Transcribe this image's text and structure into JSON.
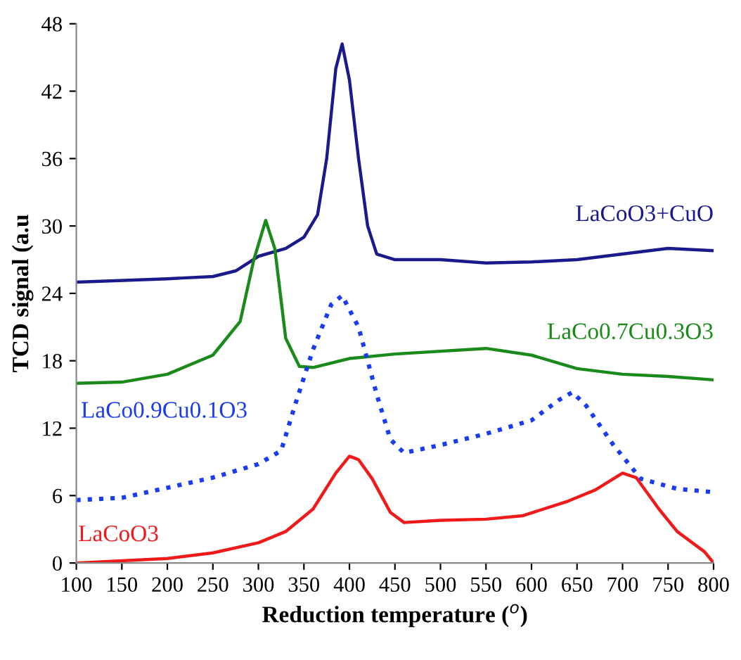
{
  "chart_data": {
    "type": "line",
    "xlabel": "Reduction temperature ($^{o}$)",
    "ylabel": "TCD signal (a.u",
    "xlim": [
      100,
      800
    ],
    "xticks": [
      100,
      150,
      200,
      250,
      300,
      350,
      400,
      450,
      500,
      550,
      600,
      650,
      700,
      750,
      800
    ],
    "ylim": [
      0,
      48
    ],
    "yticks": [
      0,
      6,
      12,
      18,
      24,
      30,
      36,
      42,
      48
    ],
    "grid": false,
    "legend": false,
    "marker": "none",
    "series": [
      {
        "name": "LaCoO3+CuO",
        "color": "#1a1a8c",
        "line_style": "solid",
        "x": [
          100,
          200,
          250,
          275,
          300,
          330,
          350,
          365,
          375,
          385,
          392,
          400,
          410,
          420,
          430,
          450,
          500,
          550,
          600,
          650,
          700,
          750,
          800
        ],
        "values": [
          25,
          25.3,
          25.5,
          26,
          27.3,
          28,
          29,
          31,
          36,
          44,
          46.2,
          43,
          36,
          30,
          27.5,
          27,
          27,
          26.7,
          26.8,
          27,
          27.5,
          28,
          27.8
        ]
      },
      {
        "name": "LaCo0.7Cu0.3O3",
        "color": "#1a8a1a",
        "line_style": "solid",
        "x": [
          100,
          150,
          200,
          250,
          280,
          295,
          308,
          318,
          330,
          345,
          360,
          400,
          450,
          550,
          600,
          650,
          700,
          750,
          800
        ],
        "values": [
          16,
          16.1,
          16.8,
          18.5,
          21.5,
          27,
          30.5,
          28,
          20,
          17.5,
          17.4,
          18.2,
          18.6,
          19.1,
          18.5,
          17.3,
          16.8,
          16.6,
          16.3
        ]
      },
      {
        "name": "LaCo0.9Cu0.1O3",
        "color": "#1a3cf0",
        "line_style": "dotted",
        "x": [
          100,
          150,
          200,
          250,
          300,
          325,
          340,
          360,
          380,
          392,
          410,
          430,
          445,
          460,
          500,
          550,
          600,
          630,
          645,
          660,
          690,
          720,
          760,
          800
        ],
        "values": [
          5.6,
          5.8,
          6.7,
          7.6,
          8.8,
          10,
          14,
          19,
          23,
          23.8,
          21,
          15,
          11,
          9.8,
          10.5,
          11.5,
          12.7,
          14.5,
          15.2,
          14,
          10.5,
          7.5,
          6.6,
          6.3
        ]
      },
      {
        "name": "LaCoO3",
        "color": "#f01a1a",
        "line_style": "solid",
        "x": [
          100,
          200,
          250,
          300,
          330,
          360,
          385,
          400,
          410,
          425,
          435,
          445,
          460,
          500,
          550,
          590,
          640,
          670,
          700,
          715,
          740,
          760,
          790,
          800
        ],
        "values": [
          0,
          0.4,
          0.9,
          1.8,
          2.8,
          4.8,
          8,
          9.5,
          9.2,
          7.5,
          6,
          4.5,
          3.6,
          3.8,
          3.9,
          4.2,
          5.5,
          6.5,
          8,
          7.6,
          4.8,
          2.8,
          1,
          0
        ]
      }
    ]
  }
}
